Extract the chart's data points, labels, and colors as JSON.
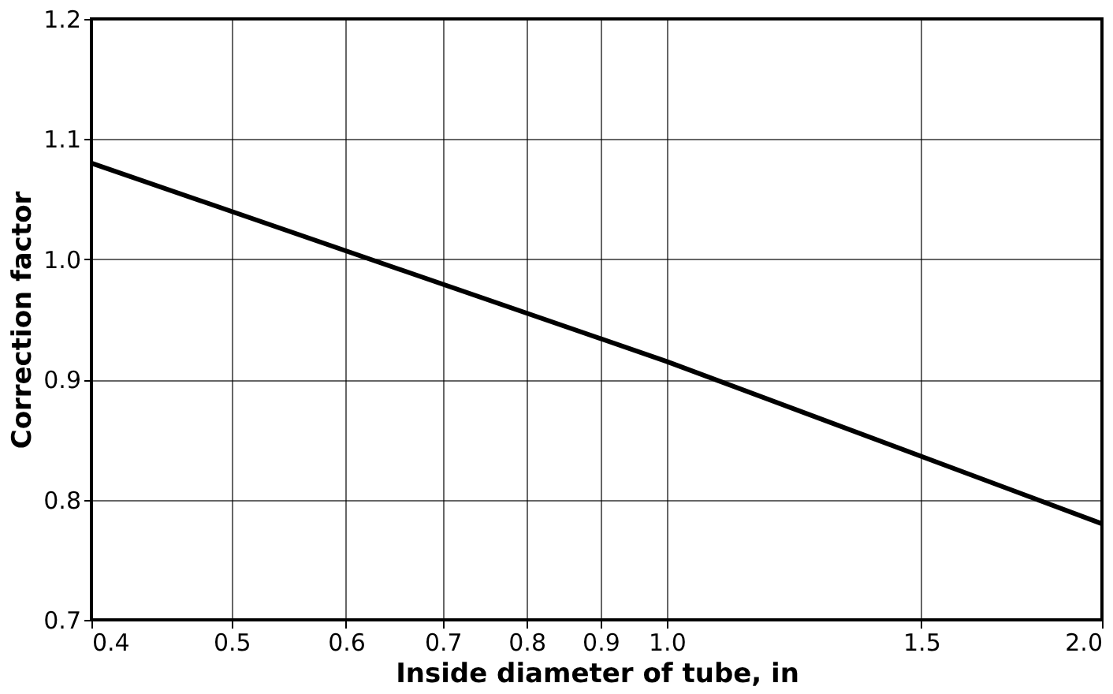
{
  "chart_data": {
    "type": "line",
    "xlabel": "Inside diameter of tube, in",
    "ylabel": "Correction factor",
    "x": [
      0.4,
      1.0,
      2.0
    ],
    "series": [
      {
        "color": "#000000",
        "values": [
          1.08,
          0.915,
          0.78
        ]
      }
    ],
    "log": "x",
    "grid": true,
    "marker": "none",
    "line_style": "solid",
    "xlim": [
      0.4,
      2.0
    ],
    "xticks": [
      0.4,
      0.5,
      0.6,
      0.7,
      0.8,
      0.9,
      {
        "value": 1.0,
        "label": "1.0"
      },
      1.5,
      {
        "value": 2.0,
        "label": "2.0"
      }
    ],
    "ylim": [
      0.7,
      1.2
    ],
    "yticks": [
      0.7,
      0.8,
      0.9,
      {
        "value": 1.0,
        "label": "1.0"
      },
      1.1,
      1.2
    ]
  }
}
